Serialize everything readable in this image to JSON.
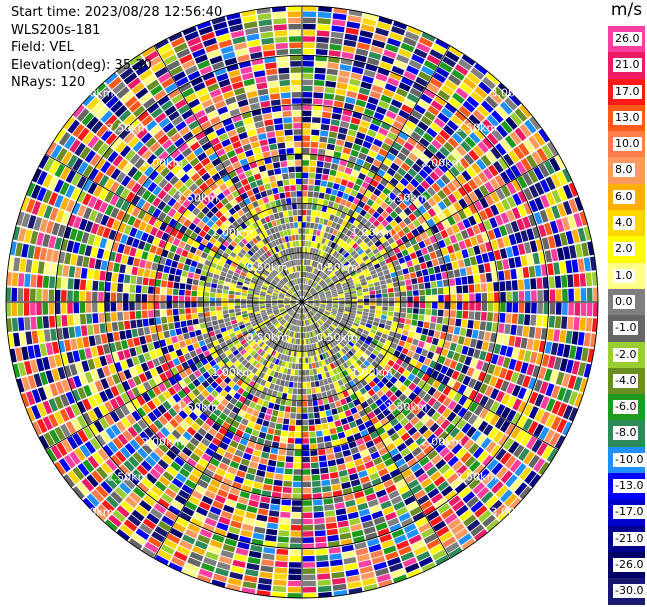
{
  "info": {
    "start_time": "Start time: 2023/08/28 12:56:40",
    "instrument": "WLS200s-181",
    "field": "Field: VEL",
    "elevation": "Elevation(deg): 35.30",
    "nrays": "NRays: 120"
  },
  "colorbar": {
    "unit": "m/s",
    "levels": [
      {
        "label": "26.0",
        "color": "#ff3fa0"
      },
      {
        "label": "21.0",
        "color": "#ee1a66"
      },
      {
        "label": "17.0",
        "color": "#ff1a1a"
      },
      {
        "label": "13.0",
        "color": "#ff5a1a"
      },
      {
        "label": "10.0",
        "color": "#ff7e4e"
      },
      {
        "label": "8.0",
        "color": "#ff9a5e"
      },
      {
        "label": "6.0",
        "color": "#ffb000"
      },
      {
        "label": "4.0",
        "color": "#ffd700"
      },
      {
        "label": "2.0",
        "color": "#ffff00"
      },
      {
        "label": "1.0",
        "color": "#ffff88"
      },
      {
        "label": "0.0",
        "color": "#7f7f7f"
      },
      {
        "label": "-1.0",
        "color": "#666666"
      },
      {
        "label": "-2.0",
        "color": "#9acd32"
      },
      {
        "label": "-4.0",
        "color": "#6b8e23"
      },
      {
        "label": "-6.0",
        "color": "#1e9a1e"
      },
      {
        "label": "-8.0",
        "color": "#2e8b57"
      },
      {
        "label": "-10.0",
        "color": "#1e90ff"
      },
      {
        "label": "-13.0",
        "color": "#0000ff"
      },
      {
        "label": "-17.0",
        "color": "#0000cd"
      },
      {
        "label": "-21.0",
        "color": "#00008b"
      },
      {
        "label": "-26.0",
        "color": "#000066"
      },
      {
        "label": "-30.0",
        "color": "#191970"
      }
    ]
  },
  "chart_data": {
    "type": "heatmap",
    "projection": "polar PPI scan",
    "field": "VEL",
    "unit": "m/s",
    "nrays": 120,
    "range_ring_labels": [
      "0.50km",
      "1.00km",
      "1.50km",
      "2.00km",
      "2.50km",
      "3.00km"
    ],
    "range_rings_km": [
      0.5,
      1.0,
      1.5,
      2.0,
      2.5,
      3.0
    ],
    "value_range": [
      -30.0,
      26.0
    ],
    "description_of_pattern": "inner ~0.5km mostly gray/yellow/green near-zero velocities; outer ranges noisy random colors across full scale"
  }
}
